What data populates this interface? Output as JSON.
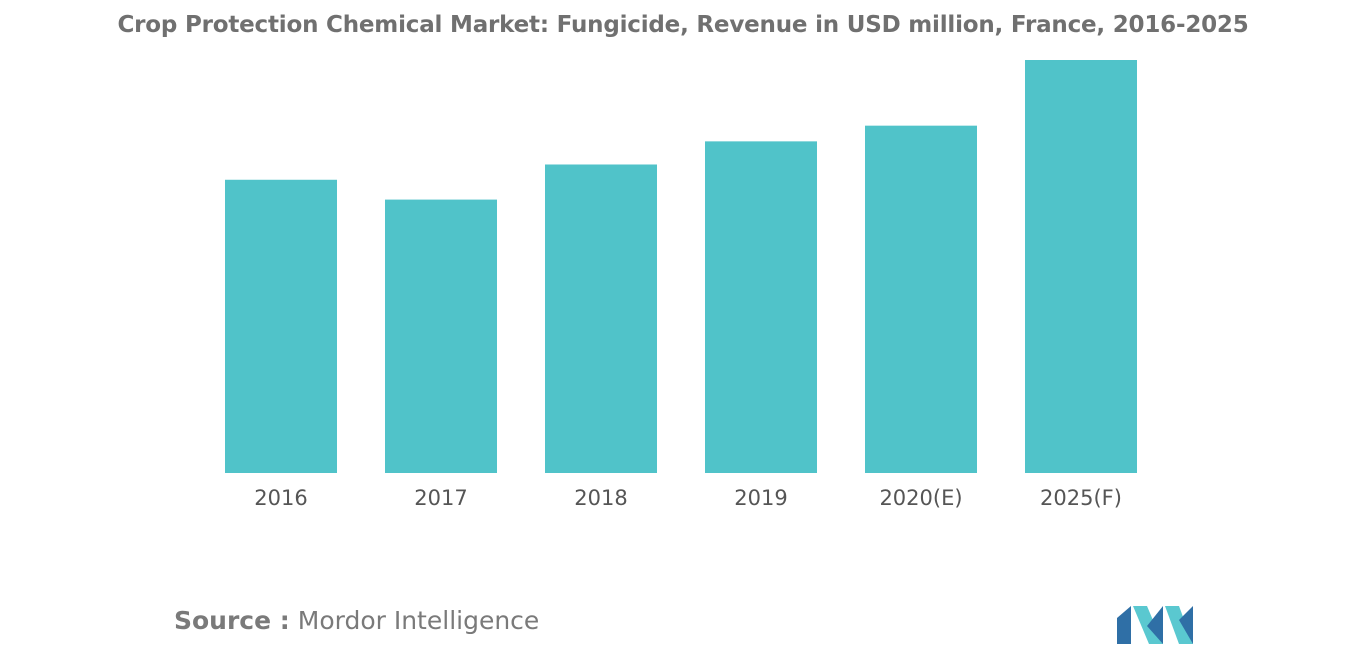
{
  "title": "Crop Protection Chemical Market: Fungicide, Revenue in USD million, France, 2016-2025",
  "source": {
    "label": "Source :",
    "name": "Mordor Intelligence"
  },
  "colors": {
    "bar": "#50c3c9",
    "axis_text": "#555555",
    "title": "#707070",
    "logo_dark": "#2f6fa6",
    "logo_light": "#5ac8d0"
  },
  "chart_data": {
    "type": "bar",
    "title": "Crop Protection Chemical Market: Fungicide, Revenue in USD million, France, 2016-2025",
    "categories": [
      "2016",
      "2017",
      "2018",
      "2019",
      "2020(E)",
      "2025(F)"
    ],
    "values": [
      710,
      662,
      747,
      803,
      841,
      1000
    ],
    "ylim": [
      0,
      1000
    ],
    "xlabel": "",
    "ylabel": "",
    "grid": false,
    "legend": "none",
    "note": "relative values; the chart prints no value axis"
  }
}
